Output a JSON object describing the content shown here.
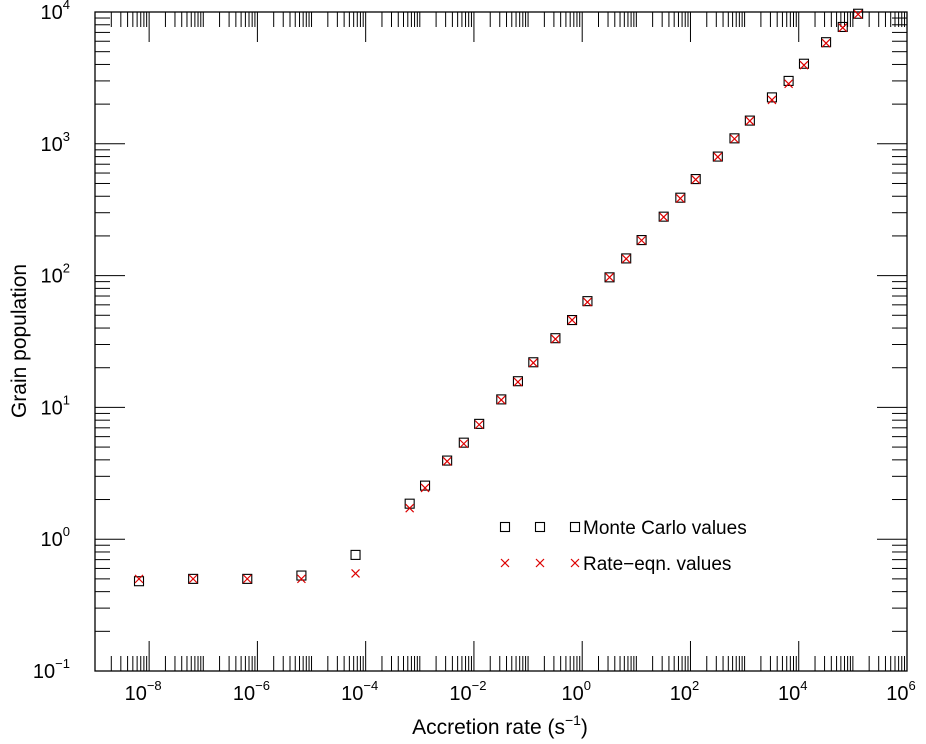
{
  "chart_data": {
    "type": "scatter",
    "title": "",
    "xlabel": "Accretion rate (s",
    "xlabel_sup": "−1",
    "xlabel_suffix": ")",
    "ylabel": "Grain population",
    "x_scale": "log",
    "y_scale": "log",
    "xlim": [
      1e-09,
      1000000.0
    ],
    "ylim": [
      0.1,
      10000
    ],
    "grid": false,
    "legend_position": "lower-right",
    "x_ticks": [
      {
        "base": "10",
        "exp": "−8",
        "value": 1e-08
      },
      {
        "base": "10",
        "exp": "−6",
        "value": 1e-06
      },
      {
        "base": "10",
        "exp": "−4",
        "value": 0.0001
      },
      {
        "base": "10",
        "exp": "−2",
        "value": 0.01
      },
      {
        "base": "10",
        "exp": "0",
        "value": 1
      },
      {
        "base": "10",
        "exp": "2",
        "value": 100
      },
      {
        "base": "10",
        "exp": "4",
        "value": 10000
      },
      {
        "base": "10",
        "exp": "6",
        "value": 1000000
      }
    ],
    "y_ticks": [
      {
        "base": "10",
        "exp": "−1",
        "value": 0.1
      },
      {
        "base": "10",
        "exp": "0",
        "value": 1
      },
      {
        "base": "10",
        "exp": "1",
        "value": 10
      },
      {
        "base": "10",
        "exp": "2",
        "value": 100
      },
      {
        "base": "10",
        "exp": "3",
        "value": 1000
      },
      {
        "base": "10",
        "exp": "4",
        "value": 10000
      }
    ],
    "series": [
      {
        "name": "Monte Carlo values",
        "marker": "open-square",
        "color": "#000000",
        "x": [
          6.5e-09,
          6.5e-08,
          6.5e-07,
          6.5e-06,
          6.5e-05,
          0.00065,
          0.00125,
          0.0032,
          0.0065,
          0.0125,
          0.032,
          0.065,
          0.125,
          0.32,
          0.65,
          1.25,
          3.2,
          6.5,
          12.5,
          32,
          65,
          125,
          320,
          650,
          1250,
          3200,
          6500,
          12500,
          32000,
          65000,
          125000
        ],
        "y": [
          0.48,
          0.5,
          0.5,
          0.53,
          0.76,
          1.86,
          2.55,
          3.95,
          5.4,
          7.5,
          11.5,
          15.8,
          22,
          33.5,
          46,
          64,
          97,
          135,
          186,
          280,
          390,
          540,
          800,
          1100,
          1500,
          2250,
          3000,
          4050,
          5900,
          7700,
          9700
        ]
      },
      {
        "name": "Rate−eqn. values",
        "marker": "x",
        "color": "#dd0000",
        "x": [
          6.5e-09,
          6.5e-08,
          6.5e-07,
          6.5e-06,
          6.5e-05,
          0.00065,
          0.00125,
          0.0032,
          0.0065,
          0.0125,
          0.032,
          0.065,
          0.125,
          0.32,
          0.65,
          1.25,
          3.2,
          6.5,
          12.5,
          32,
          65,
          125,
          320,
          650,
          1250,
          3200,
          6500,
          12500,
          32000,
          65000,
          125000
        ],
        "y": [
          0.5,
          0.5,
          0.5,
          0.5,
          0.55,
          1.72,
          2.45,
          3.9,
          5.3,
          7.4,
          11.4,
          15.6,
          21.8,
          33,
          46,
          63,
          97,
          134,
          185,
          278,
          385,
          535,
          795,
          1090,
          1490,
          2150,
          2850,
          3950,
          5800,
          7600,
          9600
        ]
      }
    ]
  }
}
